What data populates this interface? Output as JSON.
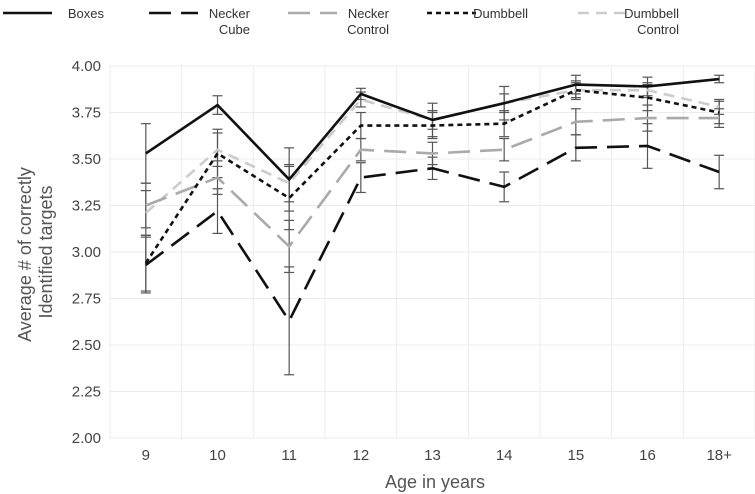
{
  "chart_data": {
    "type": "line",
    "title": "",
    "xlabel": "Age in years",
    "ylabel": [
      "Average # of correctly",
      "Identified targets"
    ],
    "categories": [
      "9",
      "10",
      "11",
      "12",
      "13",
      "14",
      "15",
      "16",
      "18+"
    ],
    "ylim": [
      2.0,
      4.0
    ],
    "yticks": [
      "2.00",
      "2.25",
      "2.50",
      "2.75",
      "3.00",
      "3.25",
      "3.50",
      "3.75",
      "4.00"
    ],
    "grid": true,
    "legend_position": "top",
    "series": [
      {
        "name": [
          "Boxes"
        ],
        "color": "#111111",
        "dash": "solid",
        "values": [
          3.53,
          3.79,
          3.39,
          3.85,
          3.71,
          3.8,
          3.9,
          3.89,
          3.93
        ],
        "errors": [
          0.16,
          0.05,
          0.17,
          0.03,
          0.09,
          0.09,
          0.05,
          0.05,
          0.02
        ]
      },
      {
        "name": [
          "Necker",
          "Cube"
        ],
        "color": "#111111",
        "dash": "long",
        "values": [
          2.93,
          3.22,
          2.63,
          3.4,
          3.45,
          3.35,
          3.56,
          3.57,
          3.43
        ],
        "errors": [
          0.15,
          0.12,
          0.29,
          0.08,
          0.06,
          0.08,
          0.07,
          0.12,
          0.09
        ]
      },
      {
        "name": [
          "Necker",
          "Control"
        ],
        "color": "#aaaaaa",
        "dash": "long",
        "values": [
          3.25,
          3.4,
          3.03,
          3.55,
          3.53,
          3.55,
          3.7,
          3.72,
          3.72
        ],
        "errors": [
          0.12,
          0.09,
          0.14,
          0.06,
          0.06,
          0.06,
          0.07,
          0.07,
          0.05
        ]
      },
      {
        "name": [
          "Dumbbell"
        ],
        "color": "#111111",
        "dash": "short",
        "values": [
          2.94,
          3.53,
          3.29,
          3.68,
          3.68,
          3.69,
          3.87,
          3.83,
          3.75
        ],
        "errors": [
          0.15,
          0.13,
          0.17,
          0.07,
          0.07,
          0.07,
          0.05,
          0.07,
          0.06
        ]
      },
      {
        "name": [
          "Dumbbell",
          "Control"
        ],
        "color": "#cccccc",
        "dash": "dash",
        "values": [
          3.21,
          3.55,
          3.37,
          3.82,
          3.71,
          3.8,
          3.87,
          3.87,
          3.78
        ],
        "errors": [
          0.12,
          0.09,
          0.1,
          0.04,
          0.05,
          0.05,
          0.04,
          0.04,
          0.04
        ]
      }
    ]
  }
}
